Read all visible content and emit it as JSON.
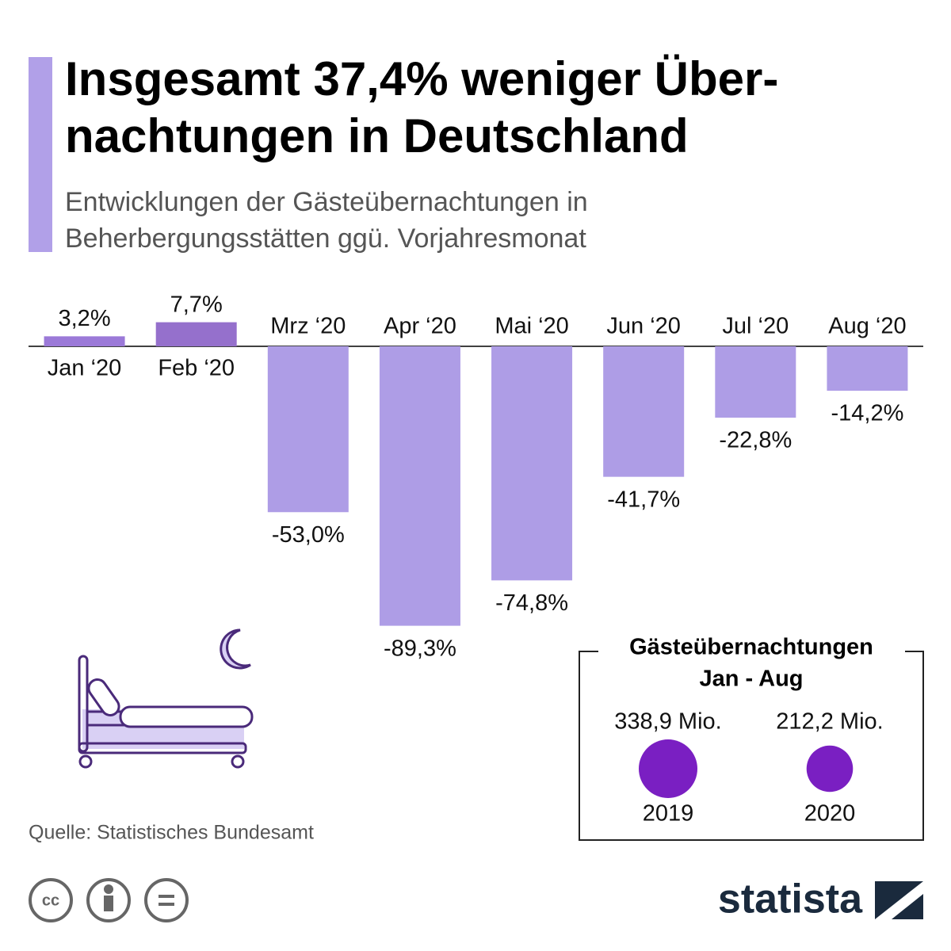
{
  "chart_data": [
    {
      "type": "bar",
      "title": [
        "Insgesamt 37,4% weniger Über-",
        "nachtungen in Deutschland"
      ],
      "subtitle": [
        "Entwicklungen der Gästeübernachtungen in",
        "Beherbergungsstätten ggü. Vorjahresmonat"
      ],
      "categories": [
        "Jan ‘20",
        "Feb ‘20",
        "Mrz ‘20",
        "Apr ‘20",
        "Mai ‘20",
        "Jun ‘20",
        "Jul ‘20",
        "Aug ‘20"
      ],
      "values": [
        3.2,
        7.7,
        -53.0,
        -89.3,
        -74.8,
        -41.7,
        -22.8,
        -14.2
      ],
      "value_labels": [
        "3,2%",
        "7,7%",
        "-53,0%",
        "-89,3%",
        "-74,8%",
        "-41,7%",
        "-22,8%",
        "-14,2%"
      ],
      "colors": [
        "#9b79d8",
        "#9570cc",
        "#ae9de6",
        "#ae9de6",
        "#ae9de6",
        "#ae9de6",
        "#ae9de6",
        "#ae9de6"
      ]
    },
    {
      "type": "bubble",
      "title": [
        "Gästeübernachtungen",
        "Jan - Aug"
      ],
      "categories": [
        "2019",
        "2020"
      ],
      "values": [
        338.9,
        212.2
      ],
      "value_labels": [
        "338,9 Mio.",
        "212,2 Mio."
      ],
      "color": "#7a1fc2"
    }
  ],
  "source": "Quelle: Statistisches Bundesamt",
  "logo": "statista"
}
